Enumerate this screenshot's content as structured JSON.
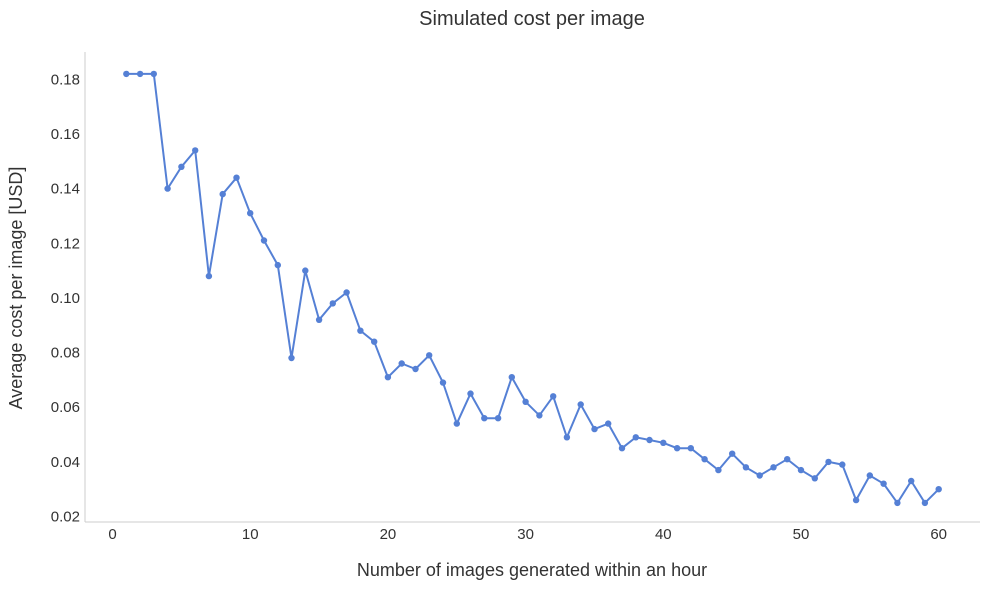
{
  "chart_data": {
    "type": "line",
    "title": "Simulated cost per image",
    "xlabel": "Number of images generated within an hour",
    "ylabel": "Average cost per image [USD]",
    "xlim": [
      -2,
      63
    ],
    "ylim": [
      0.018,
      0.19
    ],
    "x_ticks": [
      0,
      10,
      20,
      30,
      40,
      50,
      60
    ],
    "x_tick_labels": [
      "0",
      "10",
      "20",
      "30",
      "40",
      "50",
      "60"
    ],
    "y_ticks": [
      0.02,
      0.04,
      0.06,
      0.08,
      0.1,
      0.12,
      0.14,
      0.16,
      0.18
    ],
    "y_tick_labels": [
      "0.02",
      "0.04",
      "0.06",
      "0.08",
      "0.10",
      "0.12",
      "0.14",
      "0.16",
      "0.18"
    ],
    "grid": false,
    "legend": "none",
    "colors": {
      "series": "#5580d5",
      "axis": "#cccccc",
      "text": "#333333"
    },
    "series": [
      {
        "x": [
          1,
          2,
          3,
          4,
          5,
          6,
          7,
          8,
          9,
          10,
          11,
          12,
          13,
          14,
          15,
          16,
          17,
          18,
          19,
          20,
          21,
          22,
          23,
          24,
          25,
          26,
          27,
          28,
          29,
          30,
          31,
          32,
          33,
          34,
          35,
          36,
          37,
          38,
          39,
          40,
          41,
          42,
          43,
          44,
          45,
          46,
          47,
          48,
          49,
          50,
          51,
          52,
          53,
          54,
          55,
          56,
          57,
          58,
          59,
          60
        ],
        "values": [
          0.182,
          0.182,
          0.182,
          0.14,
          0.148,
          0.154,
          0.108,
          0.138,
          0.144,
          0.131,
          0.121,
          0.112,
          0.078,
          0.11,
          0.092,
          0.098,
          0.102,
          0.088,
          0.084,
          0.071,
          0.076,
          0.074,
          0.079,
          0.069,
          0.054,
          0.065,
          0.056,
          0.056,
          0.071,
          0.062,
          0.057,
          0.064,
          0.049,
          0.061,
          0.052,
          0.054,
          0.045,
          0.049,
          0.048,
          0.047,
          0.045,
          0.045,
          0.041,
          0.037,
          0.043,
          0.038,
          0.035,
          0.038,
          0.041,
          0.037,
          0.034,
          0.04,
          0.039,
          0.026,
          0.035,
          0.032,
          0.025,
          0.033,
          0.025,
          0.03
        ]
      }
    ]
  }
}
